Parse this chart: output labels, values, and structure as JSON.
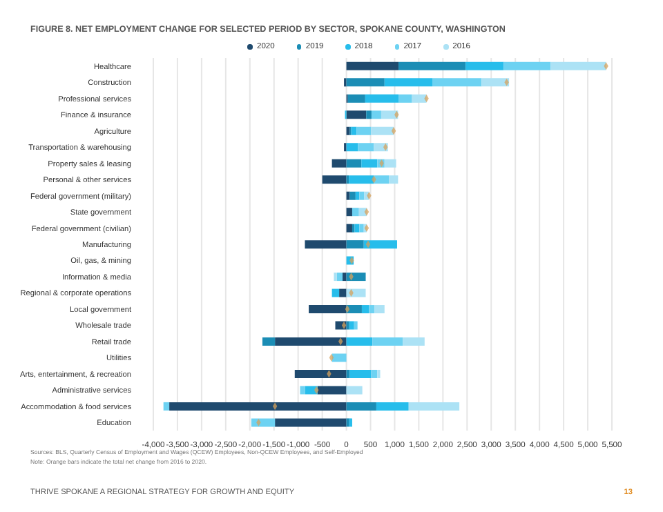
{
  "chart_data": {
    "type": "bar",
    "orientation": "horizontal",
    "stacked": true,
    "title": "FIGURE 8. NET EMPLOYMENT CHANGE FOR SELECTED PERIOD BY SECTOR, SPOKANE COUNTY, WASHINGTON",
    "categories": [
      "Healthcare",
      "Construction",
      "Professional services",
      "Finance & insurance",
      "Agriculture",
      "Transportation & warehousing",
      "Property sales & leasing",
      "Personal & other services",
      "Federal government (military)",
      "State government",
      "Federal government (civilian)",
      "Manufacturing",
      "Oil, gas, & mining",
      "Information & media",
      "Regional & corporate operations",
      "Local government",
      "Wholesale trade",
      "Retail trade",
      "Utilities",
      "Arts, entertainment, & recreation",
      "Administrative services",
      "Accommodation & food services",
      "Education"
    ],
    "series": [
      {
        "name": "2020",
        "color": "#1f4a6e",
        "values": [
          1080,
          -50,
          30,
          410,
          70,
          -50,
          -300,
          -500,
          70,
          120,
          120,
          -860,
          0,
          -80,
          -150,
          -780,
          -230,
          -1480,
          0,
          -1070,
          -600,
          -3670,
          -1480
        ]
      },
      {
        "name": "2019",
        "color": "#1b8db5",
        "values": [
          1390,
          790,
          360,
          110,
          30,
          0,
          310,
          50,
          120,
          0,
          50,
          360,
          0,
          400,
          0,
          320,
          60,
          -260,
          0,
          70,
          0,
          620,
          60
        ]
      },
      {
        "name": "2018",
        "color": "#27bdeb",
        "values": [
          790,
          990,
          690,
          -30,
          110,
          240,
          330,
          520,
          80,
          0,
          100,
          690,
          150,
          0,
          -150,
          150,
          100,
          540,
          0,
          440,
          -260,
          670,
          60
        ]
      },
      {
        "name": "2017",
        "color": "#6dd2f2",
        "values": [
          970,
          1020,
          280,
          200,
          300,
          330,
          150,
          310,
          100,
          140,
          90,
          0,
          0,
          -120,
          0,
          110,
          70,
          630,
          -300,
          130,
          -100,
          -120,
          -490
        ]
      },
      {
        "name": "2016",
        "color": "#ace2f5",
        "values": [
          1150,
          570,
          300,
          350,
          470,
          290,
          240,
          190,
          100,
          160,
          60,
          0,
          0,
          -60,
          400,
          210,
          null,
          450,
          null,
          60,
          330,
          1050,
          0
        ]
      },
      {
        "type": "scatter",
        "color": "#d5a15c",
        "marker": "diamond",
        "values": [
          5380,
          3320,
          1660,
          1040,
          980,
          810,
          730,
          570,
          470,
          420,
          420,
          450,
          110,
          100,
          100,
          20,
          -50,
          -120,
          -310,
          -360,
          -620,
          -1480,
          -1820
        ]
      }
    ],
    "xlim": [
      -4000,
      5500
    ],
    "xticks": [
      {
        "value": -4000,
        "label": "-4,000"
      },
      {
        "value": -3500,
        "label": "-3,500"
      },
      {
        "value": -3000,
        "label": "-3,000"
      },
      {
        "value": -2500,
        "label": "-2,500"
      },
      {
        "value": -2000,
        "label": "-2,000"
      },
      {
        "value": -1500,
        "label": "-1,500"
      },
      {
        "value": -1000,
        "label": "-1,000"
      },
      -500,
      0,
      500,
      {
        "value": 1000,
        "label": "1,000"
      },
      {
        "value": 1500,
        "label": "1,500"
      },
      {
        "value": 2000,
        "label": "2,000"
      },
      {
        "value": 2500,
        "label": "2,500"
      },
      {
        "value": 3000,
        "label": "3,000"
      },
      {
        "value": 3500,
        "label": "3,500"
      },
      {
        "value": 4000,
        "label": "4,000"
      },
      {
        "value": 4500,
        "label": "4,500"
      },
      {
        "value": 5000,
        "label": "5,000"
      },
      {
        "value": 5500,
        "label": "5,500"
      }
    ],
    "grid": "x",
    "legend": "top",
    "annotations": [
      "Sources: BLS, Quarterly Census of Employment and Wages (QCEW) Employees, Non-QCEW Employees, and Self-Employed",
      "Note: Orange bars indicate the total net change from 2016 to 2020.",
      "THRIVE SPOKANE A REGIONAL STRATEGY FOR GROWTH AND EQUITY",
      "13"
    ]
  }
}
